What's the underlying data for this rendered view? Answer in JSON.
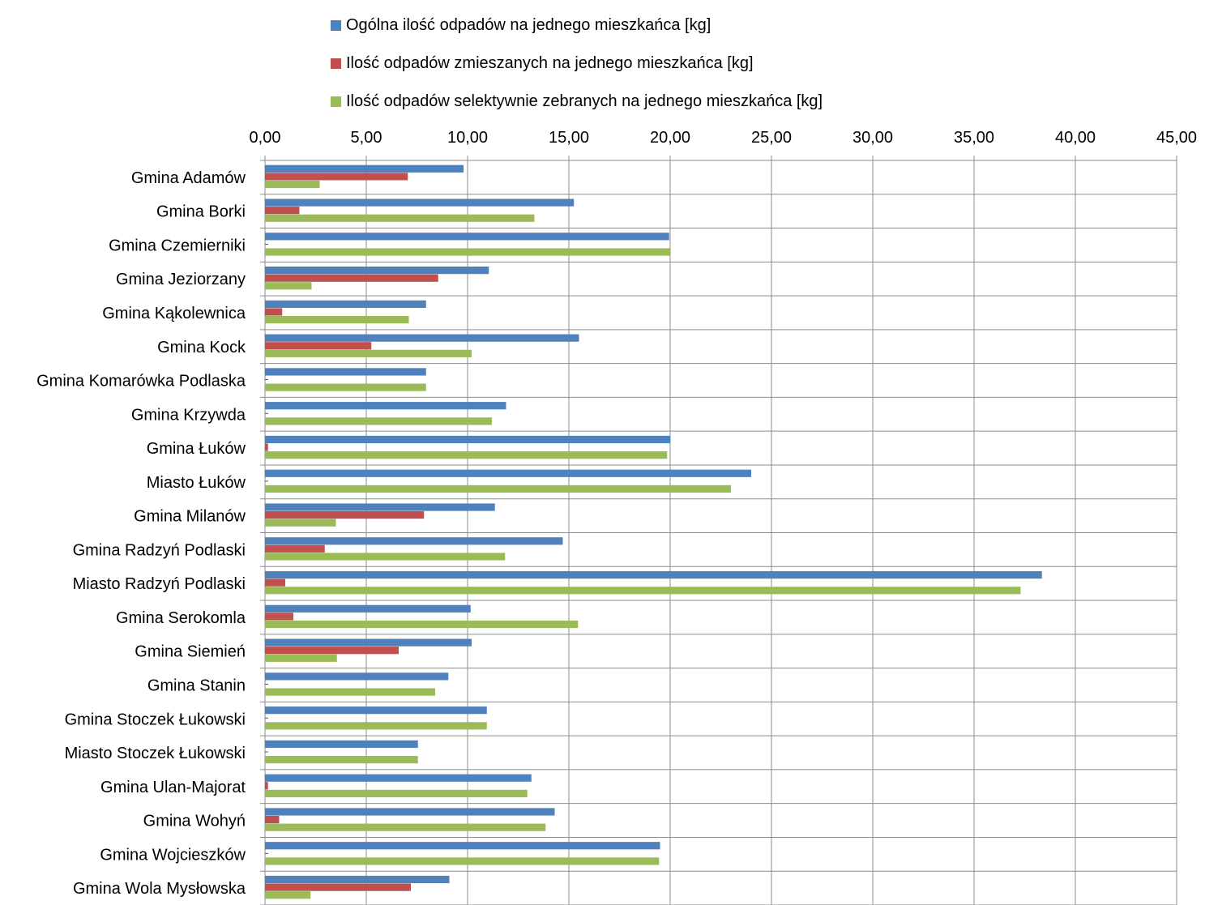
{
  "chart_data": {
    "type": "bar",
    "orientation": "horizontal",
    "legend_position": "top",
    "grid": true,
    "xlim": [
      0,
      45
    ],
    "x_ticks": [
      "0,00",
      "5,00",
      "10,00",
      "15,00",
      "20,00",
      "25,00",
      "30,00",
      "35,00",
      "40,00",
      "45,00"
    ],
    "categories": [
      "Gmina Adamów",
      "Gmina Borki",
      "Gmina Czemierniki",
      "Gmina Jeziorzany",
      "Gmina Kąkolewnica",
      "Gmina Kock",
      "Gmina Komarówka Podlaska",
      "Gmina Krzywda",
      "Gmina Łuków",
      "Miasto Łuków",
      "Gmina Milanów",
      "Gmina Radzyń Podlaski",
      "Miasto Radzyń Podlaski",
      "Gmina Serokomla",
      "Gmina Siemień",
      "Gmina Stanin",
      "Gmina Stoczek Łukowski",
      "Miasto Stoczek Łukowski",
      "Gmina Ulan-Majorat",
      "Gmina Wohyń",
      "Gmina Wojcieszków",
      "Gmina Wola Mysłowska"
    ],
    "series": [
      {
        "name": "Ogólna ilość odpadów na jednego mieszkańca [kg]",
        "color": "#4F81BD",
        "values": [
          9.8,
          15.25,
          19.95,
          11.05,
          7.95,
          15.5,
          7.95,
          11.9,
          20.0,
          24.0,
          11.35,
          14.7,
          38.35,
          10.15,
          10.2,
          9.05,
          10.95,
          7.55,
          13.15,
          14.3,
          19.5,
          9.1
        ]
      },
      {
        "name": "Ilość odpadów zmieszanych na jednego mieszkańca [kg]",
        "color": "#C0504D",
        "values": [
          7.05,
          1.7,
          0.0,
          8.55,
          0.85,
          5.25,
          0.0,
          0.0,
          0.15,
          0.0,
          7.85,
          2.95,
          1.0,
          1.4,
          6.6,
          0.0,
          0.0,
          0.0,
          0.15,
          0.7,
          0.0,
          7.2
        ]
      },
      {
        "name": "Ilość odpadów selektywnie zebranych na jednego mieszkańca [kg]",
        "color": "#9BBB59",
        "values": [
          2.7,
          13.3,
          20.0,
          2.3,
          7.1,
          10.2,
          7.95,
          11.2,
          19.85,
          23.0,
          3.5,
          11.85,
          37.3,
          15.45,
          3.55,
          8.4,
          10.95,
          7.55,
          12.95,
          13.85,
          19.45,
          2.25
        ]
      }
    ]
  }
}
